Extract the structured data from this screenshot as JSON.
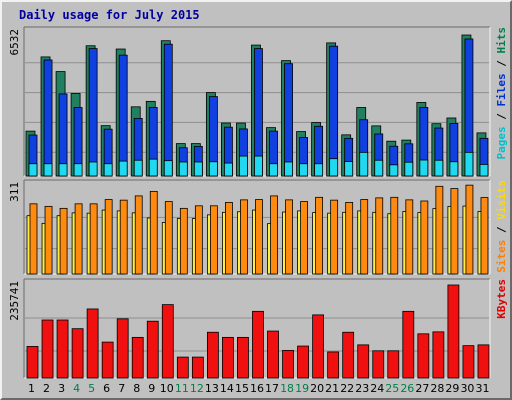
{
  "chart_data": {
    "type": "bar",
    "title": "Daily usage for July 2015",
    "categories": [
      "1",
      "2",
      "3",
      "4",
      "5",
      "6",
      "7",
      "8",
      "9",
      "10",
      "11",
      "12",
      "13",
      "14",
      "15",
      "16",
      "17",
      "18",
      "19",
      "20",
      "21",
      "22",
      "23",
      "24",
      "25",
      "26",
      "27",
      "28",
      "29",
      "30",
      "31"
    ],
    "weekend_days": [
      "4",
      "5",
      "11",
      "12",
      "18",
      "19",
      "25",
      "26"
    ],
    "grid": true,
    "panels": [
      {
        "name": "requests",
        "ymax_label": "6532",
        "ymax": 6532,
        "legend": [
          {
            "text": "Pages",
            "color": "#00c0d0"
          },
          {
            "text": " / ",
            "color": "#000000"
          },
          {
            "text": "Files",
            "color": "#0030d0"
          },
          {
            "text": " / ",
            "color": "#000000"
          },
          {
            "text": "Hits",
            "color": "#00804a"
          }
        ],
        "series": [
          {
            "name": "Hits",
            "color": "#208060",
            "values": [
              2050,
              5440,
              4770,
              3770,
              5950,
              2300,
              5800,
              3160,
              3410,
              6180,
              1480,
              1480,
              3810,
              2420,
              2420,
              5980,
              2210,
              5270,
              2030,
              2440,
              6080,
              1880,
              3130,
              2290,
              1590,
              1640,
              3360,
              2390,
              2650,
              6440,
              1970
            ]
          },
          {
            "name": "Files",
            "color": "#1040e0",
            "values": [
              1870,
              5300,
              3750,
              3130,
              5820,
              2140,
              5520,
              2630,
              3130,
              6020,
              1290,
              1350,
              3630,
              2230,
              2150,
              5820,
              2050,
              5130,
              1760,
              2270,
              5930,
              1720,
              2570,
              1920,
              1360,
              1470,
              3130,
              2190,
              2400,
              6260,
              1720
            ]
          },
          {
            "name": "Pages",
            "color": "#20d8f0",
            "values": [
              560,
              560,
              560,
              560,
              640,
              560,
              680,
              720,
              770,
              700,
              640,
              640,
              650,
              590,
              910,
              910,
              560,
              640,
              560,
              560,
              790,
              660,
              1080,
              720,
              510,
              630,
              730,
              720,
              650,
              1080,
              530
            ]
          }
        ]
      },
      {
        "name": "visits",
        "ymax_label": "311",
        "ymax": 311,
        "legend": [
          {
            "text": "Sites",
            "color": "#ff7f00"
          },
          {
            "text": " / ",
            "color": "#000000"
          },
          {
            "text": "Visits",
            "color": "#ffd800"
          }
        ],
        "series": [
          {
            "name": "Visits",
            "color": "#ffee40",
            "values": [
              206,
              179,
              206,
              216,
              215,
              226,
              223,
              216,
              198,
              182,
              196,
              196,
              209,
              218,
              220,
              226,
              178,
              219,
              223,
              217,
              215,
              218,
              223,
              218,
              213,
              221,
              217,
              231,
              239,
              240,
              221
            ]
          },
          {
            "name": "Sites",
            "color": "#ff8a10",
            "values": [
              248,
              239,
              232,
              248,
              248,
              263,
              261,
              276,
              292,
              256,
              232,
              241,
              241,
              253,
              262,
              263,
              276,
              262,
              256,
              271,
              261,
              253,
              263,
              269,
              271,
              262,
              258,
              310,
              302,
              314,
              270
            ]
          }
        ]
      },
      {
        "name": "kbytes",
        "ymax_label": "235741",
        "ymax": 235741,
        "legend": [
          {
            "text": "KBytes",
            "color": "#e00000"
          }
        ],
        "series": [
          {
            "name": "KBytes",
            "color": "#f01010",
            "values": [
              80000,
              147000,
              147000,
              125000,
              175000,
              91000,
              150000,
              103000,
              144000,
              186000,
              53000,
              53000,
              116000,
              103000,
              103000,
              169000,
              119000,
              70000,
              81000,
              160000,
              66000,
              116000,
              84000,
              69000,
              69000,
              169000,
              112000,
              117000,
              235741,
              82000,
              84000
            ]
          }
        ]
      }
    ]
  }
}
